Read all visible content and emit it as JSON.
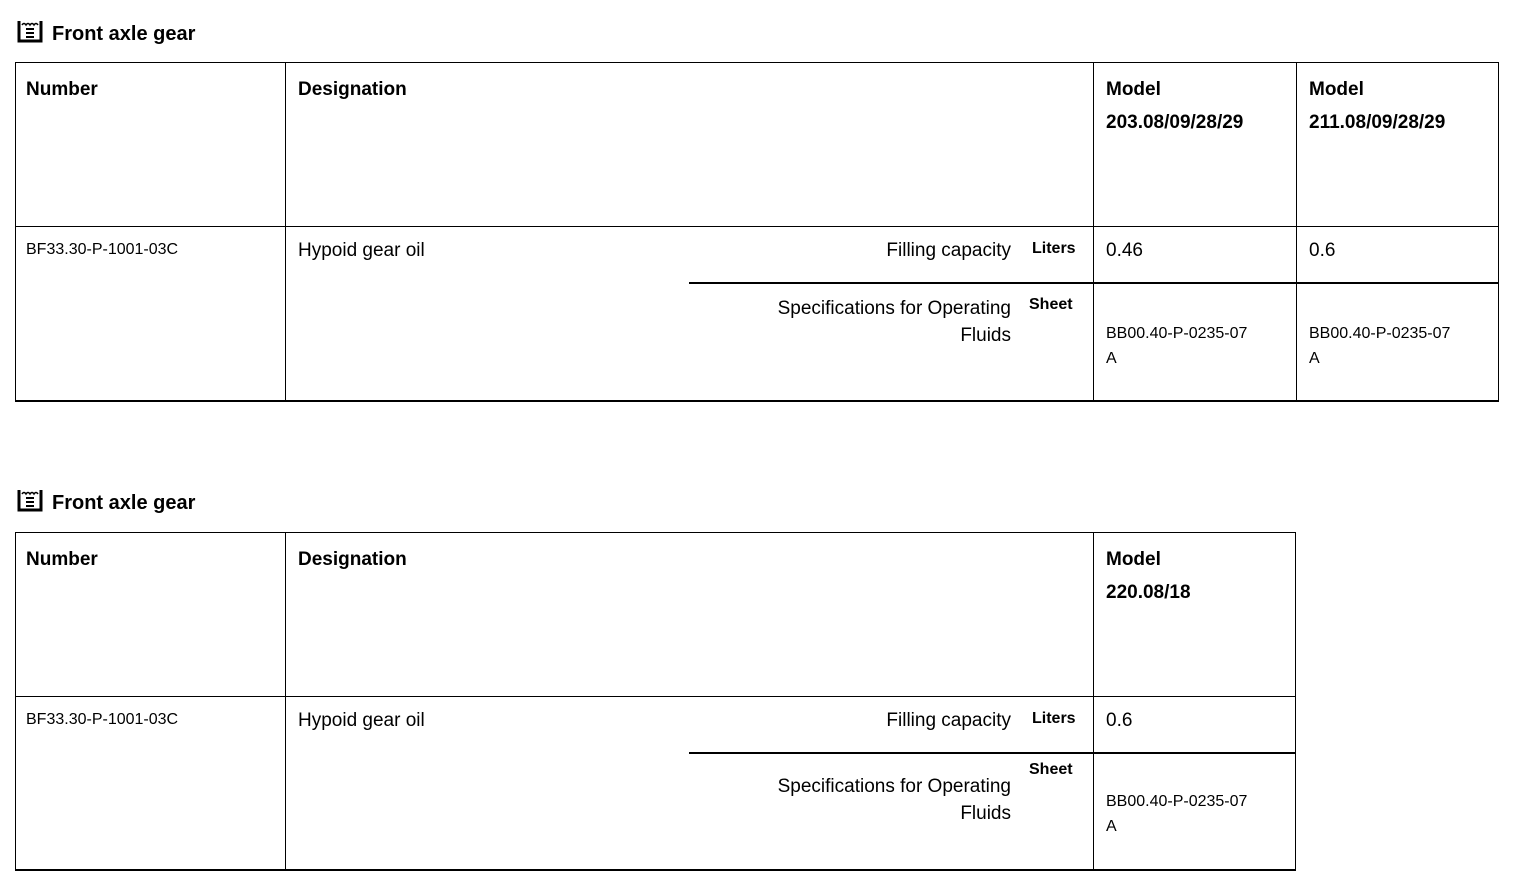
{
  "sections": [
    {
      "title": "Front axle gear",
      "icon": "fluid-container-icon",
      "headers": {
        "number": "Number",
        "designation": "Designation",
        "models": [
          "Model\n203.08/09/28/29",
          "Model\n211.08/09/28/29"
        ]
      },
      "row": {
        "number": "BF33.30-P-1001-03C",
        "designation": "Hypoid gear oil",
        "filling_label": "Filling capacity",
        "filling_unit": "Liters",
        "filling_values": [
          "0.46",
          "0.6"
        ],
        "spec_label": "Specifications for Operating\nFluids",
        "spec_unit": "Sheet",
        "spec_values": [
          "BB00.40-P-0235-07\nA",
          "BB00.40-P-0235-07\nA"
        ]
      }
    },
    {
      "title": "Front axle gear",
      "icon": "fluid-container-icon",
      "headers": {
        "number": "Number",
        "designation": "Designation",
        "models": [
          "Model\n220.08/18"
        ]
      },
      "row": {
        "number": "BF33.30-P-1001-03C",
        "designation": "Hypoid gear oil",
        "filling_label": "Filling capacity",
        "filling_unit": "Liters",
        "filling_values": [
          "0.6"
        ],
        "spec_label": "Specifications for Operating\nFluids",
        "spec_unit": "Sheet",
        "spec_values": [
          "BB00.40-P-0235-07\nA"
        ]
      }
    }
  ]
}
